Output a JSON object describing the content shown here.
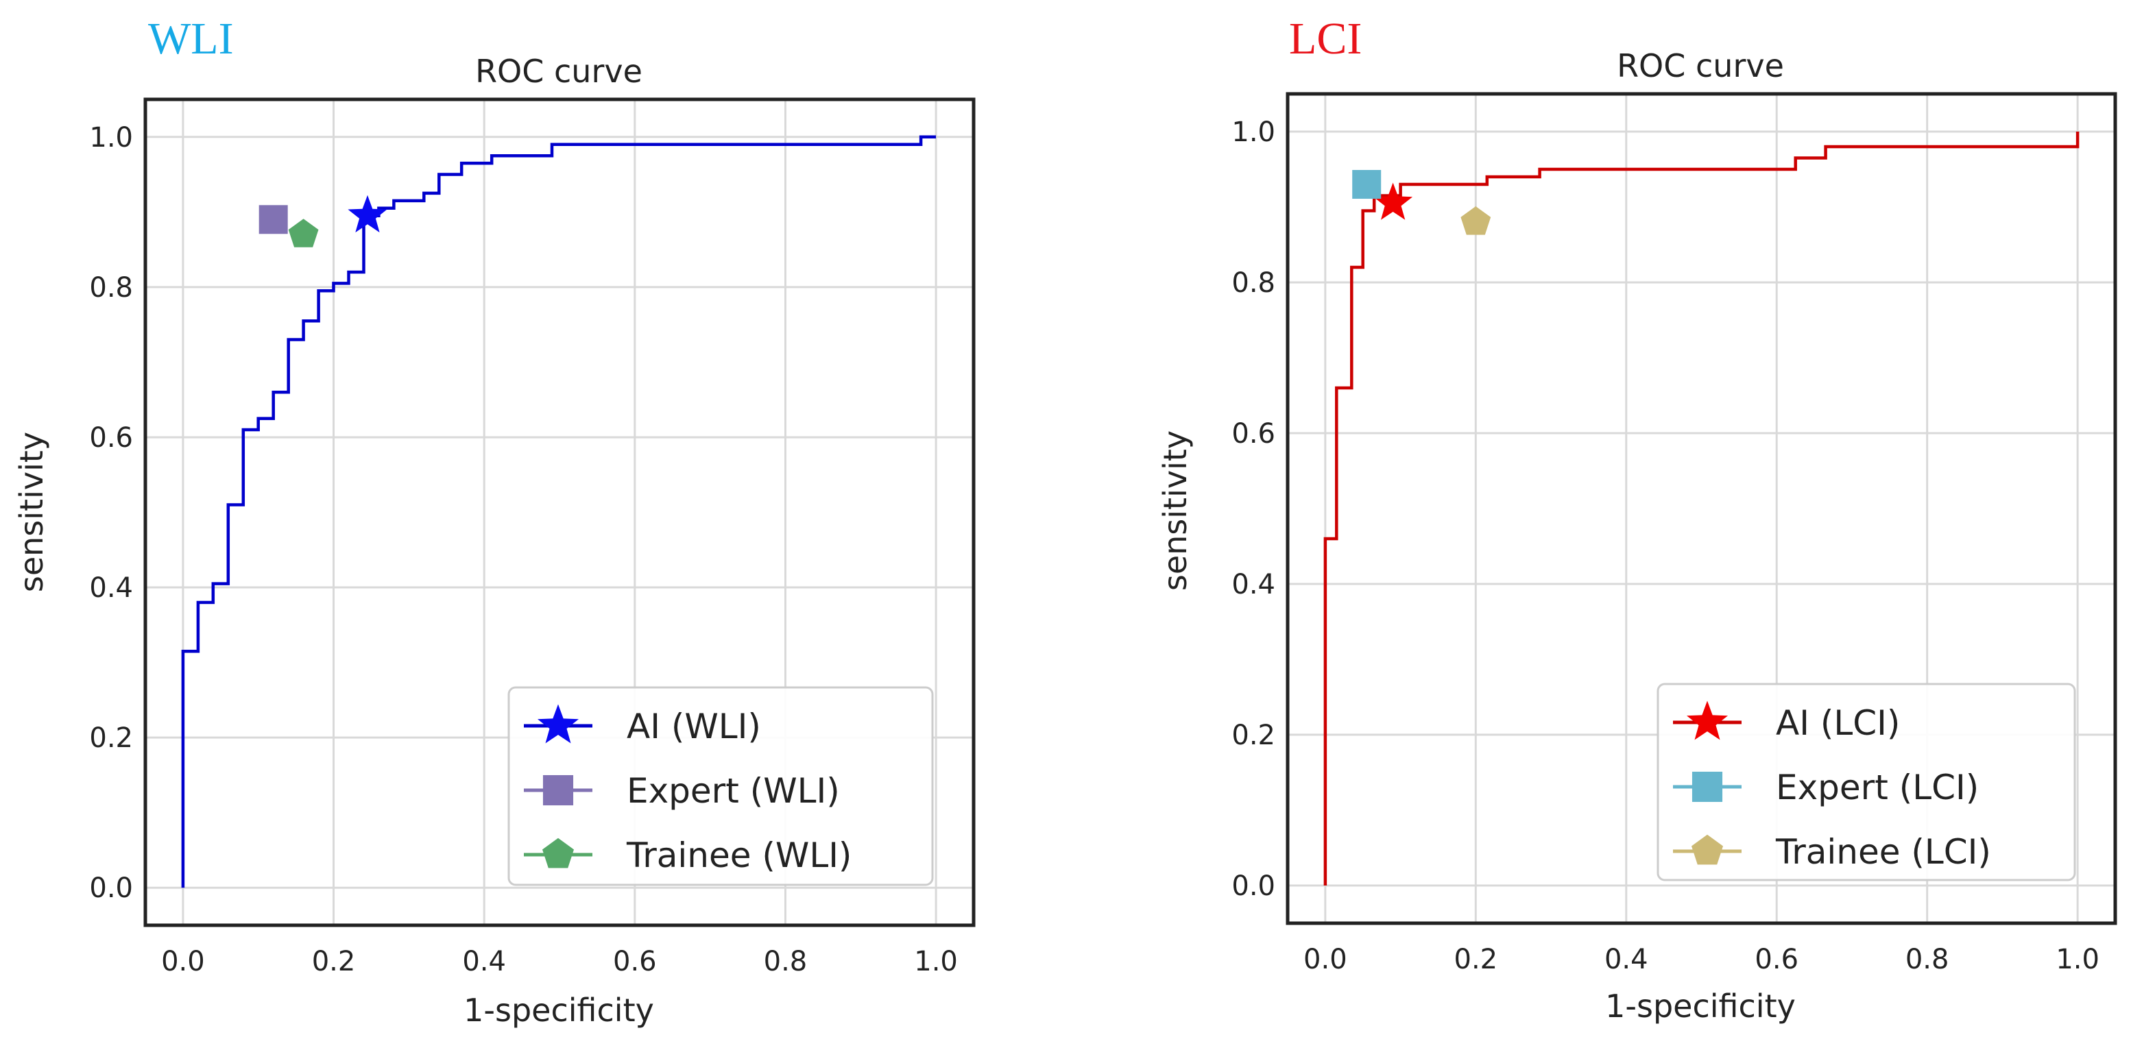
{
  "chart_data": [
    {
      "type": "line",
      "panel_tag": "WLI",
      "panel_tag_color": "#16a9e6",
      "title": "ROC curve",
      "xlabel": "1-specificity",
      "ylabel": "sensitivity",
      "xlim": [
        -0.05,
        1.05
      ],
      "ylim": [
        -0.05,
        1.05
      ],
      "xticks": [
        0.0,
        0.2,
        0.4,
        0.6,
        0.8,
        1.0
      ],
      "yticks": [
        0.0,
        0.2,
        0.4,
        0.6,
        0.8,
        1.0
      ],
      "xtick_labels": [
        "0.0",
        "0.2",
        "0.4",
        "0.6",
        "0.8",
        "1.0"
      ],
      "ytick_labels": [
        "0.0",
        "0.2",
        "0.4",
        "0.6",
        "0.8",
        "1.0"
      ],
      "grid": true,
      "legend_position": "lower-right",
      "series": [
        {
          "name": "AI (WLI)",
          "kind": "step-line",
          "color": "#0000cc",
          "x": [
            0.0,
            0.0,
            0.02,
            0.02,
            0.04,
            0.04,
            0.06,
            0.06,
            0.08,
            0.08,
            0.1,
            0.1,
            0.12,
            0.12,
            0.14,
            0.14,
            0.16,
            0.16,
            0.18,
            0.18,
            0.2,
            0.2,
            0.22,
            0.22,
            0.24,
            0.24,
            0.26,
            0.26,
            0.28,
            0.28,
            0.32,
            0.32,
            0.34,
            0.34,
            0.37,
            0.37,
            0.41,
            0.41,
            0.49,
            0.49,
            0.55,
            0.55,
            0.98,
            0.98,
            1.0
          ],
          "y": [
            0.0,
            0.315,
            0.315,
            0.38,
            0.38,
            0.405,
            0.405,
            0.51,
            0.51,
            0.61,
            0.61,
            0.625,
            0.625,
            0.66,
            0.66,
            0.73,
            0.73,
            0.755,
            0.755,
            0.795,
            0.795,
            0.805,
            0.805,
            0.82,
            0.82,
            0.895,
            0.895,
            0.905,
            0.905,
            0.915,
            0.915,
            0.925,
            0.925,
            0.95,
            0.95,
            0.965,
            0.965,
            0.975,
            0.975,
            0.99,
            0.99,
            0.99,
            0.99,
            1.0,
            1.0
          ]
        },
        {
          "name": "AI (WLI)",
          "kind": "point",
          "marker": "star",
          "color": "#0a0af0",
          "x": [
            0.245
          ],
          "y": [
            0.895
          ]
        },
        {
          "name": "Expert (WLI)",
          "kind": "point",
          "marker": "square",
          "color": "#8172b3",
          "x": [
            0.12
          ],
          "y": [
            0.89
          ]
        },
        {
          "name": "Trainee (WLI)",
          "kind": "point",
          "marker": "pentagon",
          "color": "#55a868",
          "x": [
            0.16
          ],
          "y": [
            0.87
          ]
        }
      ],
      "legend": [
        {
          "label": "AI (WLI)",
          "marker": "star",
          "line_color": "#0000cc",
          "marker_color": "#0a0af0"
        },
        {
          "label": "Expert (WLI)",
          "marker": "square",
          "line_color": "#8172b3",
          "marker_color": "#8172b3"
        },
        {
          "label": "Trainee (WLI)",
          "marker": "pentagon",
          "line_color": "#55a868",
          "marker_color": "#55a868"
        }
      ]
    },
    {
      "type": "line",
      "panel_tag": "LCI",
      "panel_tag_color": "#e8141b",
      "title": "ROC curve",
      "xlabel": "1-specificity",
      "ylabel": "sensitivity",
      "xlim": [
        -0.05,
        1.05
      ],
      "ylim": [
        -0.05,
        1.05
      ],
      "xticks": [
        0.0,
        0.2,
        0.4,
        0.6,
        0.8,
        1.0
      ],
      "yticks": [
        0.0,
        0.2,
        0.4,
        0.6,
        0.8,
        1.0
      ],
      "xtick_labels": [
        "0.0",
        "0.2",
        "0.4",
        "0.6",
        "0.8",
        "1.0"
      ],
      "ytick_labels": [
        "0.0",
        "0.2",
        "0.4",
        "0.6",
        "0.8",
        "1.0"
      ],
      "grid": true,
      "legend_position": "lower-right",
      "series": [
        {
          "name": "AI (LCI)",
          "kind": "step-line",
          "color": "#cc0000",
          "x": [
            0.0,
            0.0,
            0.015,
            0.015,
            0.035,
            0.035,
            0.05,
            0.05,
            0.065,
            0.065,
            0.1,
            0.1,
            0.215,
            0.215,
            0.285,
            0.285,
            0.625,
            0.625,
            0.665,
            0.665,
            1.0,
            1.0
          ],
          "y": [
            0.0,
            0.46,
            0.46,
            0.66,
            0.66,
            0.82,
            0.82,
            0.895,
            0.895,
            0.915,
            0.915,
            0.93,
            0.93,
            0.94,
            0.94,
            0.95,
            0.95,
            0.965,
            0.965,
            0.98,
            0.98,
            1.0
          ]
        },
        {
          "name": "AI (LCI)",
          "kind": "point",
          "marker": "star",
          "color": "#f00000",
          "x": [
            0.09
          ],
          "y": [
            0.905
          ]
        },
        {
          "name": "Expert (LCI)",
          "kind": "point",
          "marker": "square",
          "color": "#64b5cd",
          "x": [
            0.055
          ],
          "y": [
            0.93
          ]
        },
        {
          "name": "Trainee (LCI)",
          "kind": "point",
          "marker": "pentagon",
          "color": "#ccb974",
          "x": [
            0.2
          ],
          "y": [
            0.88
          ]
        }
      ],
      "legend": [
        {
          "label": "AI (LCI)",
          "marker": "star",
          "line_color": "#cc0000",
          "marker_color": "#f00000"
        },
        {
          "label": "Expert (LCI)",
          "marker": "square",
          "line_color": "#64b5cd",
          "marker_color": "#64b5cd"
        },
        {
          "label": "Trainee (LCI)",
          "marker": "pentagon",
          "line_color": "#ccb974",
          "marker_color": "#ccb974"
        }
      ]
    }
  ]
}
